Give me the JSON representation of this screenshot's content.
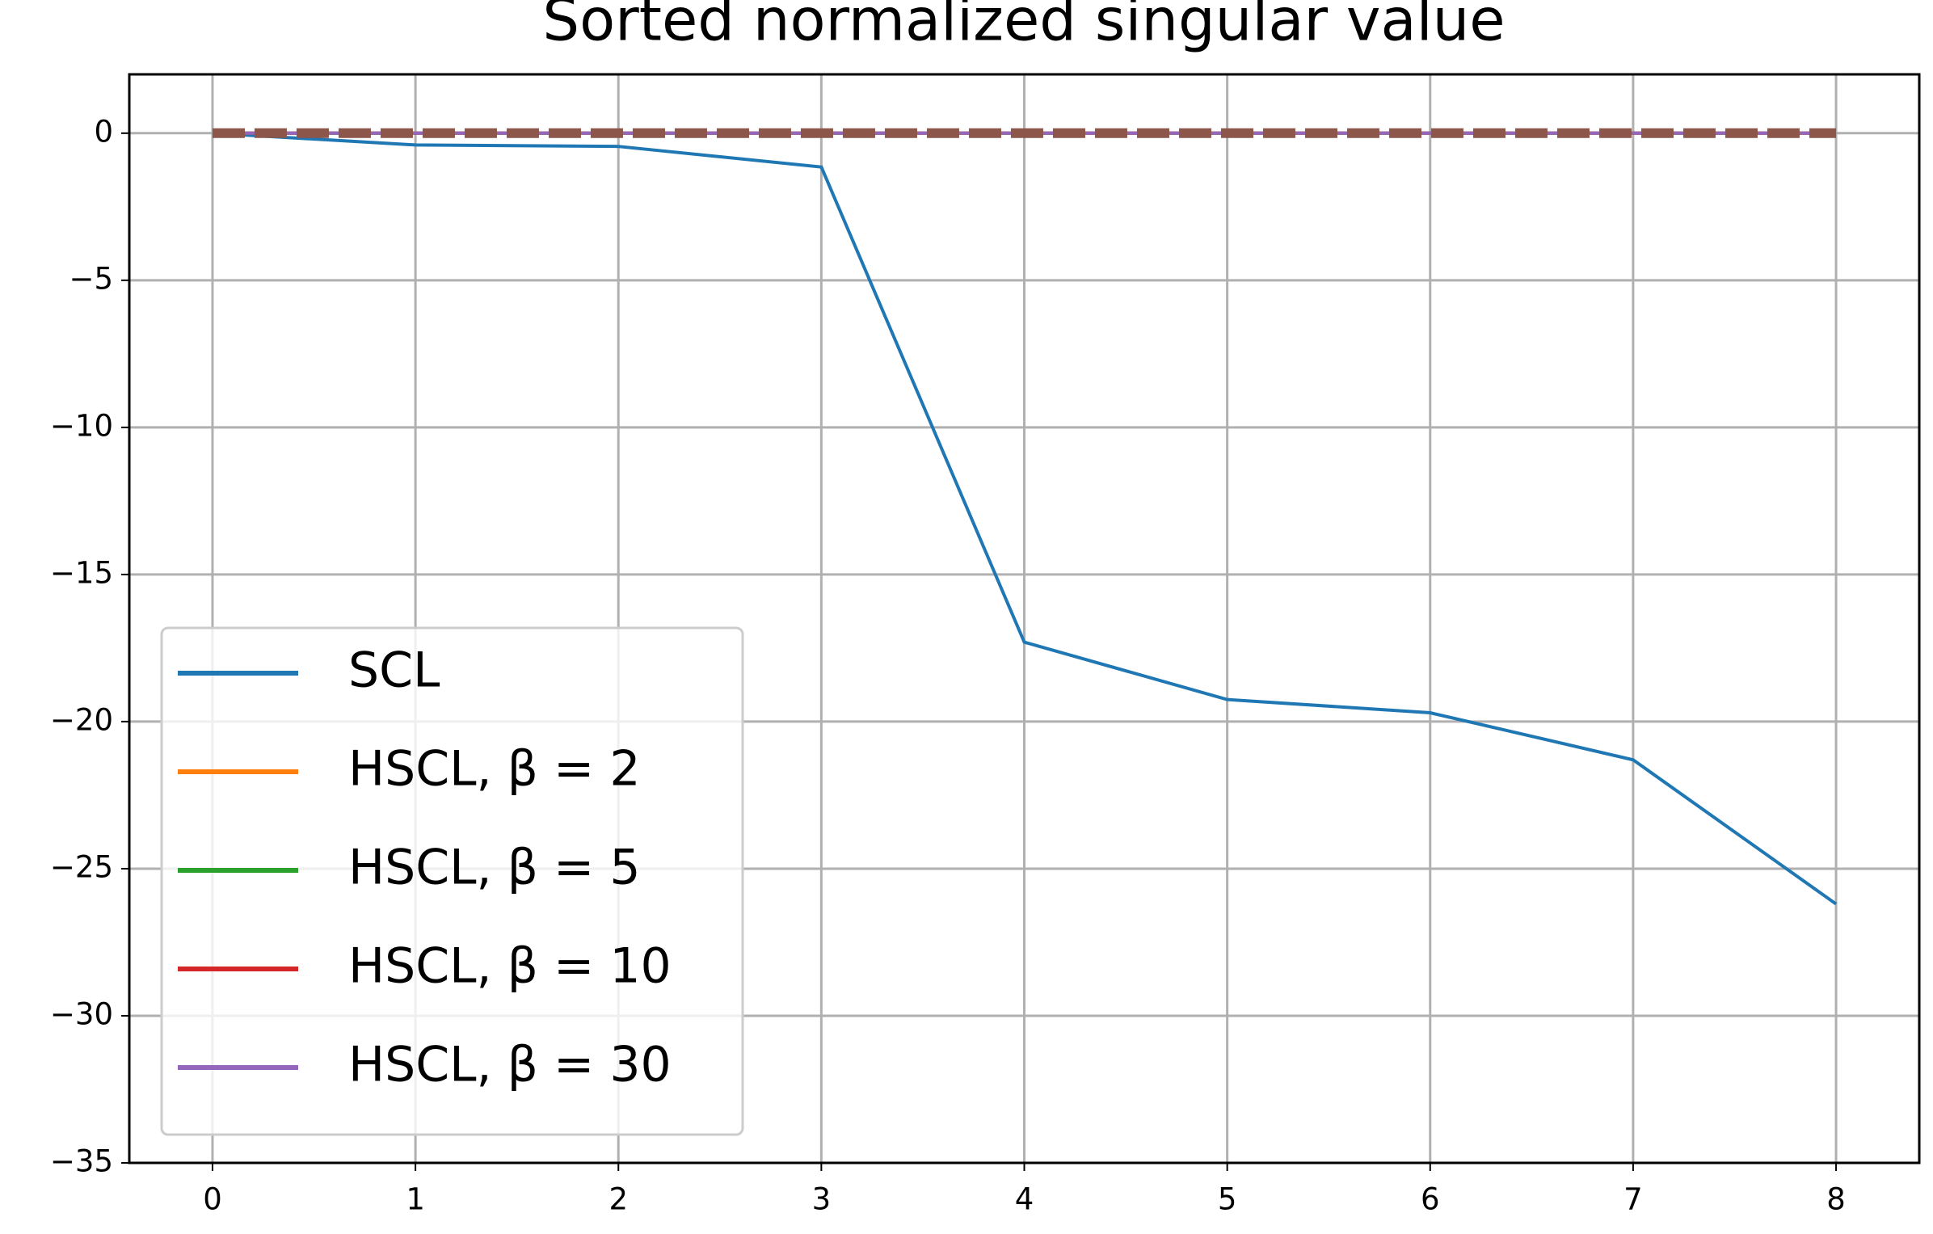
{
  "chart_data": {
    "type": "line",
    "title": "Sorted normalized singular value",
    "x": [
      0,
      1,
      2,
      3,
      4,
      5,
      6,
      7,
      8
    ],
    "series": [
      {
        "name": "SCL",
        "color": "#1f77b4",
        "values": [
          0,
          -0.4,
          -0.45,
          -1.15,
          -17.3,
          -19.25,
          -19.7,
          -21.3,
          -26.2
        ]
      },
      {
        "name": "HSCL, β = 2",
        "color": "#ff7f0e",
        "values": [
          0,
          0,
          0,
          0,
          0,
          0,
          0,
          0,
          0
        ]
      },
      {
        "name": "HSCL, β = 5",
        "color": "#2ca02c",
        "values": [
          0,
          0,
          0,
          0,
          0,
          0,
          0,
          0,
          0
        ]
      },
      {
        "name": "HSCL, β = 10",
        "color": "#d62728",
        "values": [
          0,
          0,
          0,
          0,
          0,
          0,
          0,
          0,
          0
        ]
      },
      {
        "name": "HSCL, β = 30",
        "color": "#9467bd",
        "values": [
          0,
          0,
          0,
          0,
          0,
          0,
          0,
          0,
          0
        ]
      },
      {
        "color": "#8c564b",
        "dashed": true,
        "values": [
          0,
          0,
          0,
          0,
          0,
          0,
          0,
          0,
          0
        ]
      }
    ],
    "xlim": [
      -0.41,
      8.41
    ],
    "xticks": [
      0,
      1,
      2,
      3,
      4,
      5,
      6,
      7,
      8
    ],
    "ylim": [
      -35,
      2
    ],
    "yticks": [
      {
        "value": -35,
        "label": "−35"
      },
      {
        "value": -30,
        "label": "−30"
      },
      {
        "value": -25,
        "label": "−25"
      },
      {
        "value": -20,
        "label": "−20"
      },
      {
        "value": -15,
        "label": "−15"
      },
      {
        "value": -10,
        "label": "−10"
      },
      {
        "value": -5,
        "label": "−5"
      },
      0
    ],
    "grid": true,
    "legend": "lower left"
  }
}
